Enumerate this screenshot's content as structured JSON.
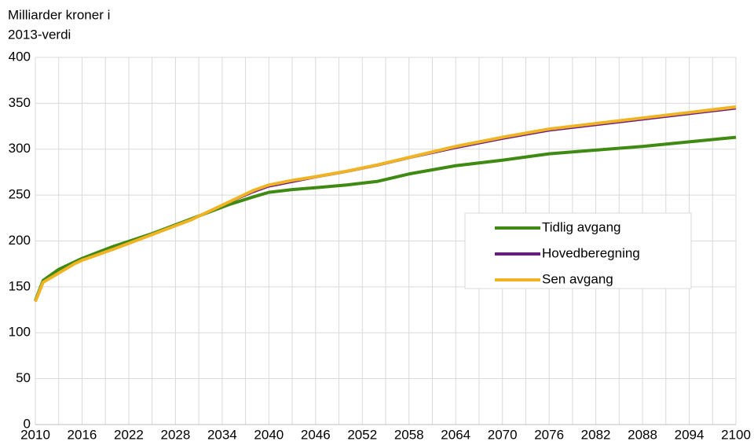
{
  "chart_data": {
    "type": "line",
    "ylabel": [
      "Milliarder kroner i",
      "2013-verdi"
    ],
    "x": [
      2010,
      2011,
      2013,
      2015,
      2016,
      2020,
      2025,
      2030,
      2035,
      2038,
      2040,
      2043,
      2046,
      2050,
      2054,
      2058,
      2064,
      2070,
      2076,
      2082,
      2088,
      2094,
      2100
    ],
    "series": [
      {
        "name": "Tidlig avgang",
        "color": "#3f8a12",
        "width": 4,
        "values": [
          135,
          157,
          169,
          177,
          181,
          194,
          208,
          224,
          240,
          248,
          253,
          256,
          258,
          261,
          265,
          273,
          282,
          288,
          295,
          299,
          303,
          308,
          313
        ]
      },
      {
        "name": "Hovedberegning",
        "color": "#6a1a87",
        "width": 2,
        "values": [
          134,
          155,
          165,
          175,
          179,
          191,
          207,
          223,
          242,
          253,
          259,
          264,
          269,
          275,
          282,
          290,
          301,
          311,
          320,
          326,
          332,
          338,
          344
        ]
      },
      {
        "name": "Sen avgang",
        "color": "#f0b323",
        "width": 4,
        "values": [
          134,
          155,
          165,
          175,
          179,
          191,
          207,
          223,
          243,
          255,
          261,
          266,
          270,
          276,
          283,
          291,
          303,
          313,
          322,
          328,
          334,
          340,
          346
        ]
      }
    ],
    "xlim": [
      2010,
      2100
    ],
    "xticks": [
      2010,
      2016,
      2022,
      2028,
      2034,
      2040,
      2046,
      2052,
      2058,
      2064,
      2070,
      2076,
      2082,
      2088,
      2094,
      2100
    ],
    "xgrid": [
      2013,
      2019,
      2025,
      2031,
      2037,
      2043,
      2049,
      2055,
      2061,
      2067,
      2073,
      2079,
      2085,
      2091,
      2097
    ],
    "ylim": [
      0,
      400
    ],
    "yticks": [
      0,
      50,
      100,
      150,
      200,
      250,
      300,
      350,
      400
    ],
    "grid": true
  }
}
